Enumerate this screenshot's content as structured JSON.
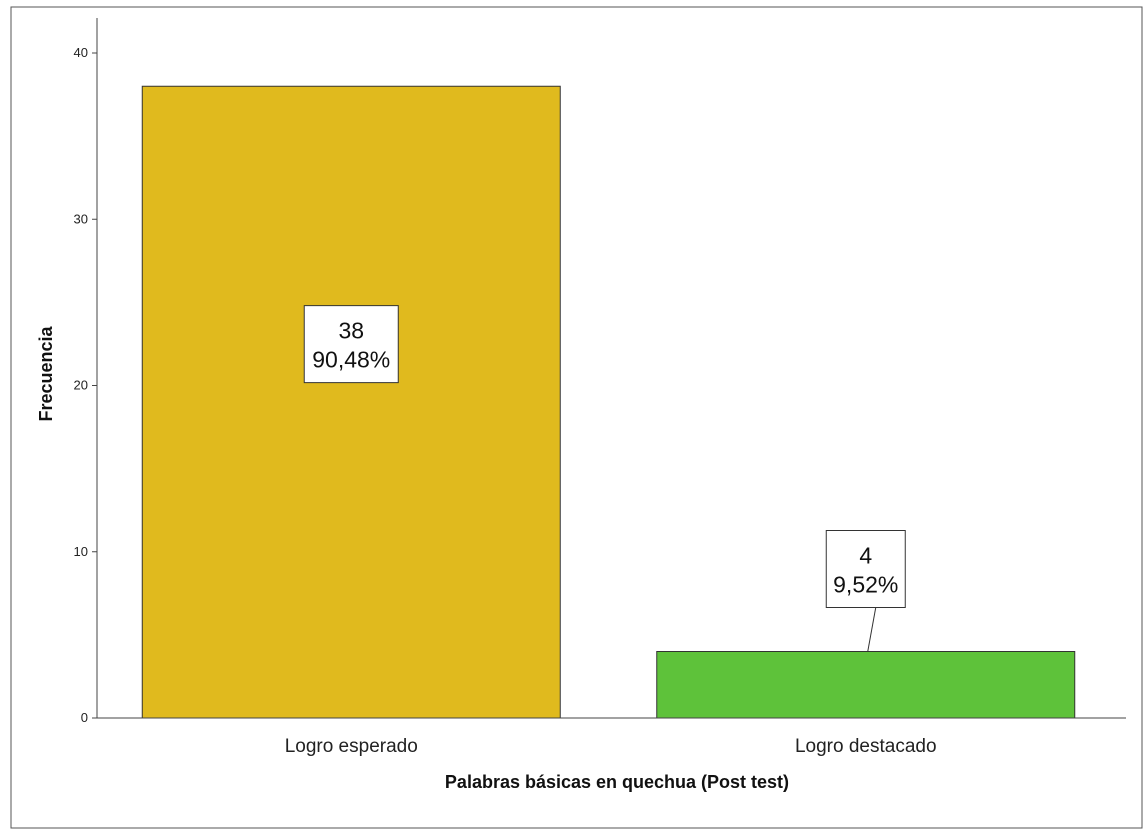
{
  "chart_data": {
    "type": "bar",
    "xlabel": "Palabras básicas en quechua (Post test)",
    "ylabel": "Frecuencia",
    "ylim": [
      0,
      40
    ],
    "yticks": [
      0,
      10,
      20,
      30,
      40
    ],
    "grid": false,
    "categories": [
      "Logro esperado",
      "Logro destacado"
    ],
    "values": [
      38,
      4
    ],
    "data_labels": [
      {
        "count": "38",
        "percent": "90,48%"
      },
      {
        "count": "4",
        "percent": "9,52%"
      }
    ],
    "colors": [
      "#e0ba1e",
      "#5ec23a"
    ]
  }
}
